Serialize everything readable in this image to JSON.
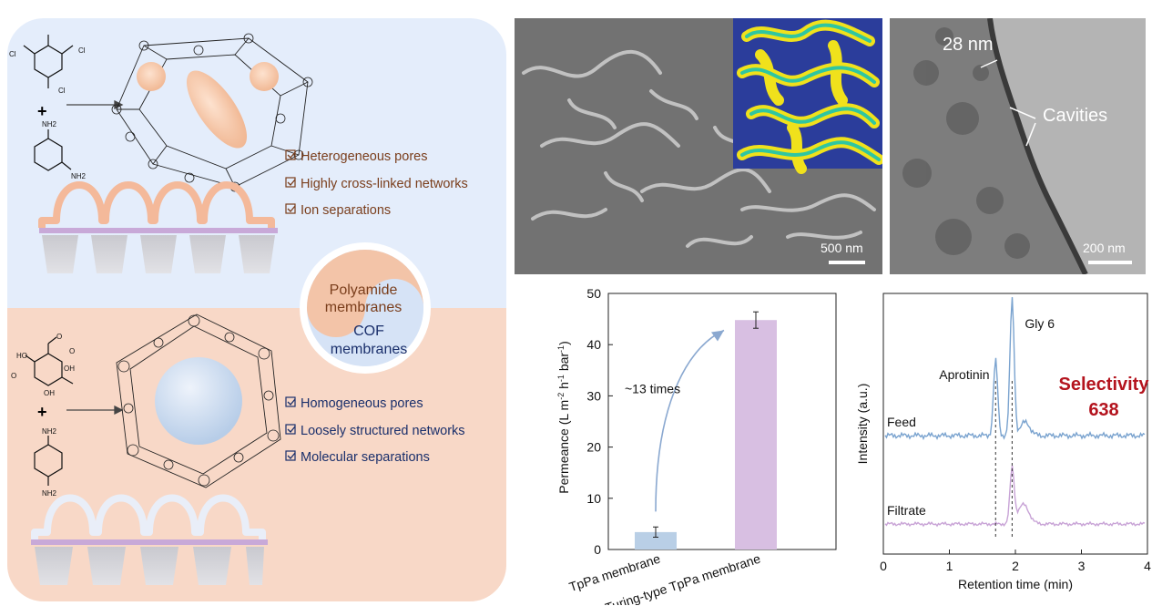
{
  "polyamide": {
    "reagent_labels": [
      "Cl",
      "Cl",
      "Cl",
      "NH2",
      "NH2"
    ],
    "plus": "+",
    "bullets": [
      "Heterogeneous pores",
      "Highly cross-linked networks",
      "Ion separations"
    ],
    "bullet_color": "#7a3e1c",
    "panel_color": "#e4edfb"
  },
  "cof": {
    "reagent_labels": [
      "O",
      "O",
      "O",
      "HO",
      "OH",
      "OH",
      "NH2",
      "NH2"
    ],
    "plus": "+",
    "bullets": [
      "Homogeneous pores",
      "Loosely structured networks",
      "Molecular separations"
    ],
    "bullet_color": "#1a2f6b",
    "panel_color": "#f8d8c7"
  },
  "yin_yang": {
    "top_label_line1": "Polyamide",
    "top_label_line2": "membranes",
    "bottom_label_line1": "COF",
    "bottom_label_line2": "membranes",
    "top_color": "#f3c4a8",
    "bottom_color": "#d6e3f6"
  },
  "sem": {
    "scale_label": "500 nm"
  },
  "tem": {
    "scale_label": "200 nm",
    "thickness_label": "28 nm",
    "cavities_label": "Cavities"
  },
  "chart_data": [
    {
      "type": "bar",
      "categories": [
        "TpPa membrane",
        "Turing-type TpPa membrane"
      ],
      "values": [
        3.4,
        44.8
      ],
      "errors": [
        1.0,
        1.6
      ],
      "colors": [
        "#b9cfe6",
        "#d8bfe2"
      ],
      "ylabel": "Permeance (L m-2 h-1 bar-1)",
      "ylim": [
        0,
        50
      ],
      "yticks": [
        0,
        10,
        20,
        30,
        40,
        50
      ],
      "annotation": "~13 times"
    },
    {
      "type": "line",
      "xlabel": "Retention time (min)",
      "ylabel": "Intensity (a.u.)",
      "xlim": [
        0,
        4
      ],
      "xticks": [
        0,
        1,
        2,
        3,
        4
      ],
      "series": [
        {
          "name": "Feed",
          "color": "#7aa3cf",
          "peaks": [
            {
              "x": 1.7,
              "height": 0.55
            },
            {
              "x": 1.95,
              "height": 1.0
            }
          ]
        },
        {
          "name": "Filtrate",
          "color": "#c8a3d6",
          "peaks": [
            {
              "x": 1.95,
              "height": 0.62
            }
          ]
        }
      ],
      "peak_labels": [
        "Aprotinin",
        "Gly 6"
      ],
      "selectivity_label": "Selectivity",
      "selectivity_value": "638",
      "selectivity_color": "#b4141e"
    }
  ]
}
